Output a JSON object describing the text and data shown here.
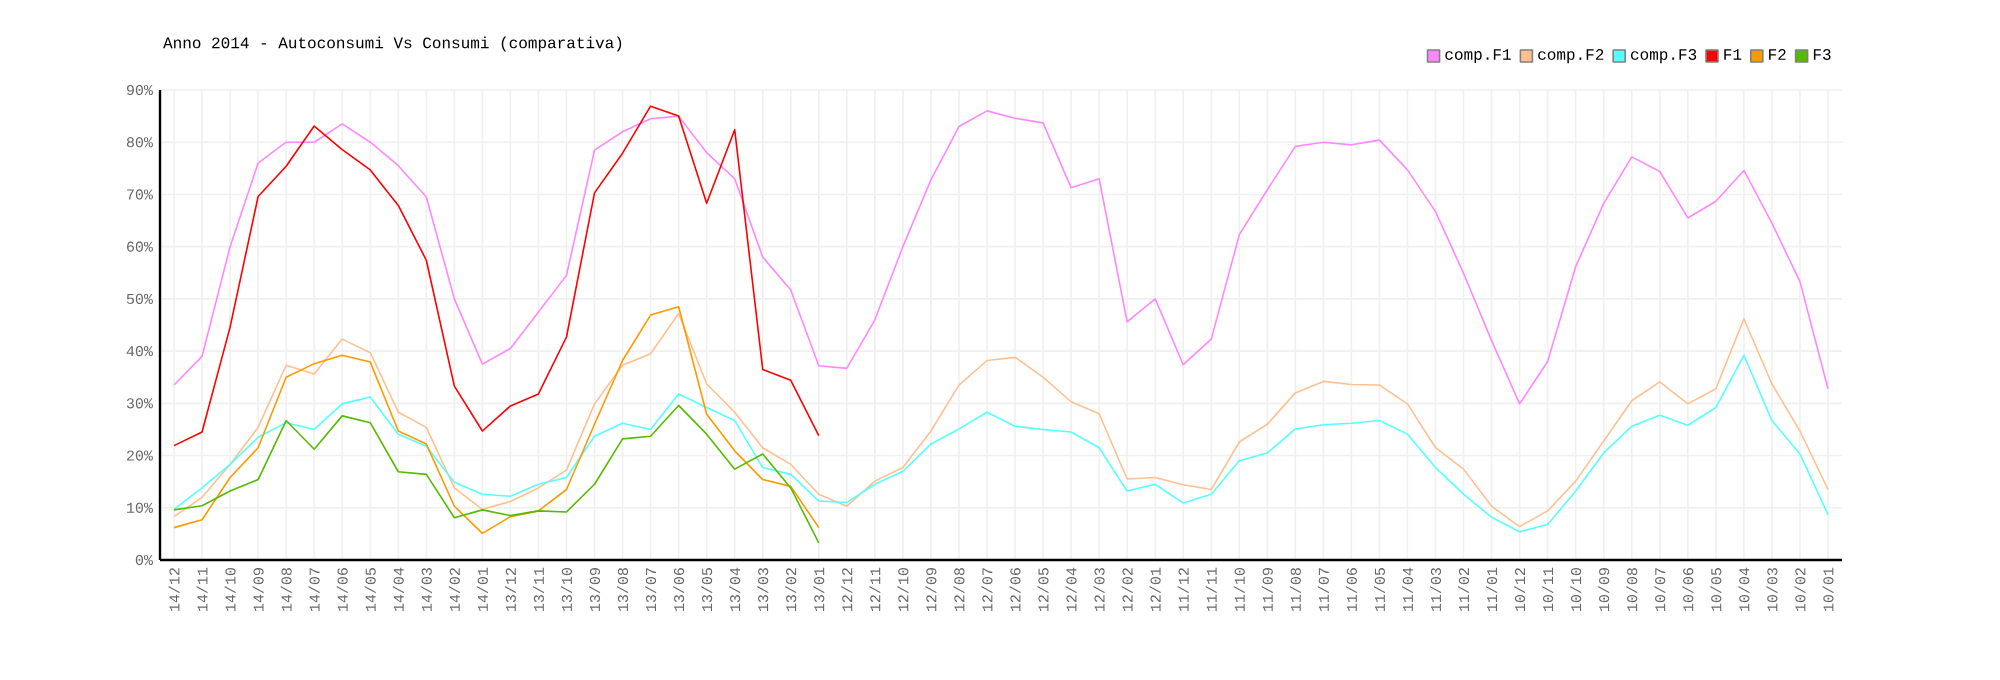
{
  "chart_data": {
    "type": "line",
    "title": "Anno 2014 - Autoconsumi Vs Consumi (comparativa)",
    "categories": [
      "14/12",
      "14/11",
      "14/10",
      "14/09",
      "14/08",
      "14/07",
      "14/06",
      "14/05",
      "14/04",
      "14/03",
      "14/02",
      "14/01",
      "13/12",
      "13/11",
      "13/10",
      "13/09",
      "13/08",
      "13/07",
      "13/06",
      "13/05",
      "13/04",
      "13/03",
      "13/02",
      "13/01",
      "12/12",
      "12/11",
      "12/10",
      "12/09",
      "12/08",
      "12/07",
      "12/06",
      "12/05",
      "12/04",
      "12/03",
      "12/02",
      "12/01",
      "11/12",
      "11/11",
      "11/10",
      "11/09",
      "11/08",
      "11/07",
      "11/06",
      "11/05",
      "11/04",
      "11/03",
      "11/02",
      "11/01",
      "10/12",
      "10/11",
      "10/10",
      "10/09",
      "10/08",
      "10/07",
      "10/06",
      "10/05",
      "10/04",
      "10/03",
      "10/02",
      "10/01"
    ],
    "series": [
      {
        "name": "comp.F1",
        "color": "#ff88ff",
        "values": [
          33.5,
          39,
          60,
          76,
          80,
          80,
          83.5,
          80,
          75.5,
          69.5,
          50,
          37.5,
          40.5,
          47.5,
          54.5,
          78.5,
          82,
          84.5,
          85,
          78,
          73,
          58,
          51.7,
          37.2,
          36.7,
          46,
          60,
          72.8,
          83,
          86,
          84.6,
          83.7,
          71.3,
          73,
          45.6,
          50,
          37.4,
          42.3,
          62.3,
          70.9,
          79.2,
          80,
          79.5,
          80.4,
          74.7,
          66.7,
          54.9,
          42,
          29.9,
          38,
          56.2,
          68.3,
          77.2,
          74.4,
          65.5,
          68.7,
          74.6,
          64.5,
          53.3,
          32.8
        ]
      },
      {
        "name": "comp.F2",
        "color": "#ffc090",
        "values": [
          8.3,
          12,
          18.3,
          25.4,
          37.3,
          35.6,
          42.3,
          39.7,
          28.3,
          25.4,
          13.8,
          9.7,
          11.2,
          13.8,
          17.2,
          29.9,
          37.3,
          39.5,
          47.2,
          33.7,
          28.3,
          21.5,
          18.3,
          12.6,
          10.3,
          15.1,
          17.7,
          24.7,
          33.5,
          38.2,
          38.8,
          35,
          30.3,
          28,
          15.5,
          15.8,
          14.4,
          13.5,
          22.6,
          26,
          32,
          34.2,
          33.6,
          33.5,
          29.9,
          21.5,
          17.4,
          10.3,
          6.4,
          9.4,
          15.1,
          22.8,
          30.5,
          34.1,
          29.9,
          32.8,
          46.2,
          33.7,
          24.7,
          13.5
        ]
      },
      {
        "name": "comp.F3",
        "color": "#55ffff",
        "values": [
          9.7,
          13.8,
          18.3,
          23.5,
          26.3,
          25,
          29.9,
          31.2,
          24.1,
          21.8,
          14.9,
          12.6,
          12.2,
          14.5,
          15.8,
          23.7,
          26.2,
          25,
          31.8,
          29.2,
          26.7,
          17.7,
          16.4,
          11.3,
          11,
          14.5,
          17,
          22.2,
          25.1,
          28.3,
          25.6,
          25,
          24.5,
          21.5,
          13.2,
          14.5,
          10.9,
          12.6,
          19,
          20.5,
          25.1,
          25.9,
          26.2,
          26.7,
          24.1,
          17.7,
          12.6,
          8.2,
          5.4,
          6.8,
          13.2,
          20.5,
          25.6,
          27.7,
          25.8,
          29.2,
          39.2,
          26.7,
          20.3,
          8.7
        ]
      },
      {
        "name": "F1",
        "color": "#ff0000",
        "values": [
          21.9,
          24.5,
          44.6,
          69.6,
          75.4,
          83.1,
          78.6,
          74.7,
          67.9,
          57.4,
          33.3,
          24.7,
          29.5,
          31.8,
          42.7,
          70.3,
          77.9,
          86.9,
          85,
          68.3,
          82.4,
          36.5,
          34.4,
          23.8,
          null,
          null,
          null,
          null,
          null,
          null,
          null,
          null,
          null,
          null,
          null,
          null,
          null,
          null,
          null,
          null,
          null,
          null,
          null,
          null,
          null,
          null,
          null,
          null,
          null,
          null,
          null,
          null,
          null,
          null,
          null,
          null,
          null,
          null,
          null,
          null
        ]
      },
      {
        "name": "F2",
        "color": "#ff9900",
        "values": [
          6.2,
          7.7,
          15.8,
          21.5,
          35,
          37.6,
          39.2,
          37.9,
          24.7,
          22.2,
          10.3,
          5.1,
          8.3,
          9.4,
          13.5,
          26,
          38.2,
          46.9,
          48.5,
          27.9,
          20.9,
          15.4,
          14.1,
          6.2,
          null,
          null,
          null,
          null,
          null,
          null,
          null,
          null,
          null,
          null,
          null,
          null,
          null,
          null,
          null,
          null,
          null,
          null,
          null,
          null,
          null,
          null,
          null,
          null,
          null,
          null,
          null,
          null,
          null,
          null,
          null,
          null,
          null,
          null,
          null,
          null
        ]
      },
      {
        "name": "F3",
        "color": "#55bb00",
        "values": [
          9.6,
          10.4,
          13.2,
          15.4,
          26.7,
          21.2,
          27.6,
          26.3,
          16.9,
          16.4,
          8.1,
          9.6,
          8.5,
          9.4,
          9.2,
          14.5,
          23.2,
          23.7,
          29.6,
          24.1,
          17.4,
          20.3,
          13.8,
          3.3,
          null,
          null,
          null,
          null,
          null,
          null,
          null,
          null,
          null,
          null,
          null,
          null,
          null,
          null,
          null,
          null,
          null,
          null,
          null,
          null,
          null,
          null,
          null,
          null,
          null,
          null,
          null,
          null,
          null,
          null,
          null,
          null,
          null,
          null,
          null,
          null
        ]
      }
    ],
    "ylim": [
      0,
      90
    ],
    "yticks": [
      {
        "value": 0,
        "label": "0%"
      },
      {
        "value": 10,
        "label": "10%"
      },
      {
        "value": 20,
        "label": "20%"
      },
      {
        "value": 30,
        "label": "30%"
      },
      {
        "value": 40,
        "label": "40%"
      },
      {
        "value": 50,
        "label": "50%"
      },
      {
        "value": 60,
        "label": "60%"
      },
      {
        "value": 70,
        "label": "70%"
      },
      {
        "value": 80,
        "label": "80%"
      },
      {
        "value": 90,
        "label": "90%"
      }
    ],
    "grid": true,
    "legend": "top right",
    "marker": "none",
    "line_style": "solid"
  }
}
